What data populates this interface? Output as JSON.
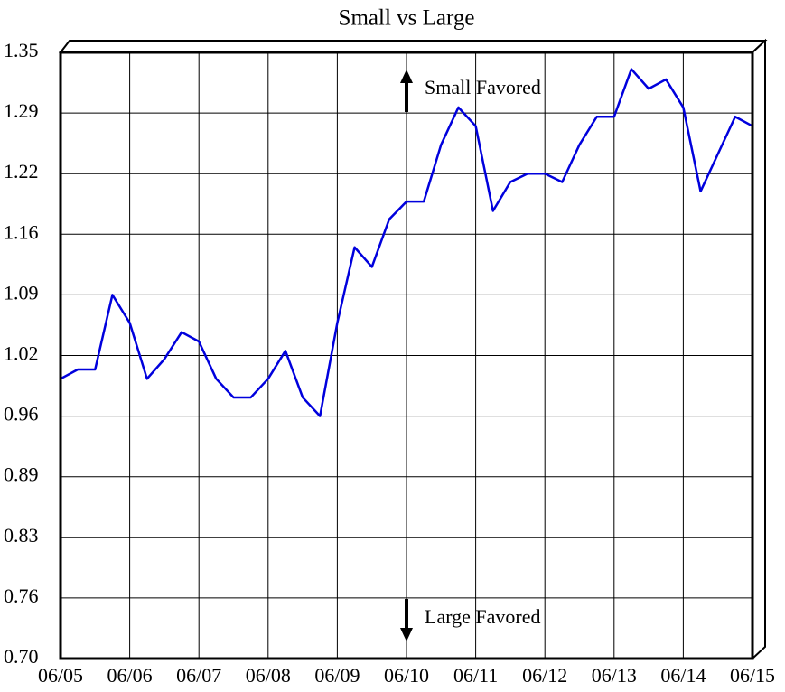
{
  "chart_data": {
    "type": "line",
    "title": "Small vs Large",
    "categories": [
      "06/05",
      null,
      null,
      null,
      "06/06",
      null,
      null,
      null,
      "06/07",
      null,
      null,
      null,
      "06/08",
      null,
      null,
      null,
      "06/09",
      null,
      null,
      null,
      "06/10",
      null,
      null,
      null,
      "06/11",
      null,
      null,
      null,
      "06/12",
      null,
      null,
      null,
      "06/13",
      null,
      null,
      null,
      "06/14",
      null,
      null,
      null,
      "06/15"
    ],
    "series": [
      {
        "name": "Small vs Large",
        "color": "#0000dd",
        "values": [
          1.0,
          1.01,
          1.01,
          1.09,
          1.06,
          1.0,
          1.021,
          1.05,
          1.04,
          1.0,
          0.98,
          0.98,
          1.0,
          1.03,
          0.98,
          0.96,
          1.06,
          1.141,
          1.12,
          1.171,
          1.19,
          1.19,
          1.251,
          1.291,
          1.271,
          1.18,
          1.211,
          1.22,
          1.22,
          1.211,
          1.251,
          1.281,
          1.281,
          1.332,
          1.311,
          1.321,
          1.291,
          1.201,
          1.241,
          1.281,
          1.271
        ]
      }
    ],
    "ylim": [
      0.7,
      1.35
    ],
    "yticks": [
      {
        "value": 0.7,
        "label": "0.70"
      },
      {
        "value": 0.765,
        "label": "0.76"
      },
      {
        "value": 0.83,
        "label": "0.83"
      },
      {
        "value": 0.895,
        "label": "0.89"
      },
      {
        "value": 0.96,
        "label": "0.96"
      },
      {
        "value": 1.025,
        "label": "1.02"
      },
      {
        "value": 1.09,
        "label": "1.09"
      },
      {
        "value": 1.155,
        "label": "1.16"
      },
      {
        "value": 1.22,
        "label": "1.22"
      },
      {
        "value": 1.285,
        "label": "1.29"
      },
      {
        "value": 1.35,
        "label": "1.35"
      }
    ],
    "grid": true,
    "annotations": [
      "Small Favored",
      "Large Favored"
    ]
  }
}
